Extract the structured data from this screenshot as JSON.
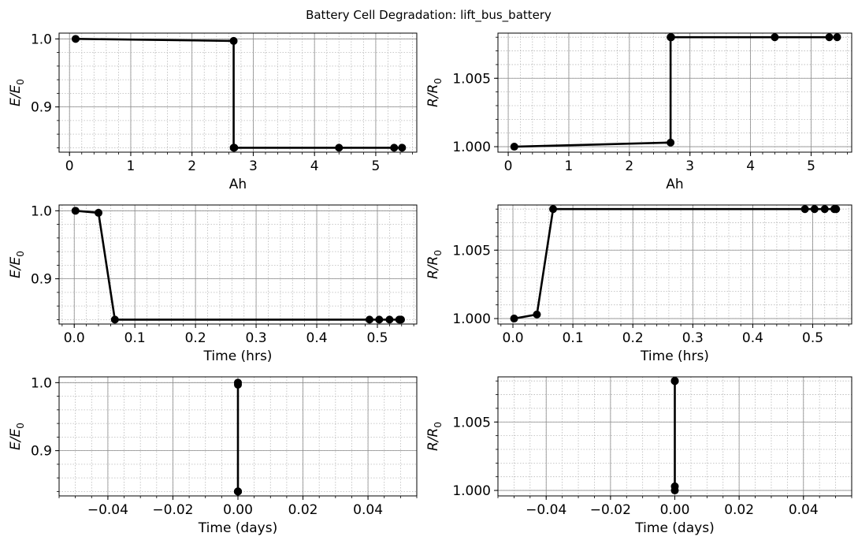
{
  "figure": {
    "suptitle": "Battery Cell Degradation: lift_bus_battery"
  },
  "style": {
    "line_color": "#000000",
    "marker_color": "#000000",
    "major_grid_color": "#8c8c8c",
    "minor_grid_color": "#b8b8b8",
    "background": "#ffffff"
  },
  "chart_data": [
    {
      "type": "line",
      "panel": "row1-left",
      "xlabel": "Ah",
      "ylabel": {
        "base": "E/E",
        "sub": "0"
      },
      "xlim": [
        -0.17,
        5.67
      ],
      "ylim": [
        0.8335,
        1.0085
      ],
      "x_ticks": [
        0,
        1,
        2,
        3,
        4,
        5
      ],
      "x_tick_labels": [
        "0",
        "1",
        "2",
        "3",
        "4",
        "5"
      ],
      "y_ticks": [
        0.9,
        1.0
      ],
      "y_tick_labels": [
        "0.9",
        "1.0"
      ],
      "x_minor_step": 0.2,
      "y_minor_step": 0.02,
      "grid": true,
      "series": [
        {
          "x": [
            0.1,
            2.68,
            2.68,
            2.69,
            4.4,
            5.3,
            5.43
          ],
          "y": [
            1.0,
            0.997,
            0.84,
            0.84,
            0.84,
            0.84,
            0.84
          ]
        }
      ]
    },
    {
      "type": "line",
      "panel": "row1-right",
      "xlabel": "Ah",
      "ylabel": {
        "base": "R/R",
        "sub": "0"
      },
      "xlim": [
        -0.17,
        5.67
      ],
      "ylim": [
        0.9996,
        1.0083
      ],
      "x_ticks": [
        0,
        1,
        2,
        3,
        4,
        5
      ],
      "x_tick_labels": [
        "0",
        "1",
        "2",
        "3",
        "4",
        "5"
      ],
      "y_ticks": [
        1.0,
        1.005
      ],
      "y_tick_labels": [
        "1.000",
        "1.005"
      ],
      "x_minor_step": 0.2,
      "y_minor_step": 0.001,
      "grid": true,
      "series": [
        {
          "x": [
            0.1,
            2.68,
            2.68,
            2.69,
            4.4,
            5.3,
            5.43
          ],
          "y": [
            1.0,
            1.0003,
            1.008,
            1.008,
            1.008,
            1.008,
            1.008
          ]
        }
      ]
    },
    {
      "type": "line",
      "panel": "row2-left",
      "xlabel": "Time (hrs)",
      "ylabel": {
        "base": "E/E",
        "sub": "0"
      },
      "xlim": [
        -0.025,
        0.565
      ],
      "ylim": [
        0.8335,
        1.0085
      ],
      "x_ticks": [
        0.0,
        0.1,
        0.2,
        0.3,
        0.4,
        0.5
      ],
      "x_tick_labels": [
        "0.0",
        "0.1",
        "0.2",
        "0.3",
        "0.4",
        "0.5"
      ],
      "y_ticks": [
        0.9,
        1.0
      ],
      "y_tick_labels": [
        "0.9",
        "1.0"
      ],
      "x_minor_step": 0.02,
      "y_minor_step": 0.02,
      "grid": true,
      "series": [
        {
          "x": [
            0.002,
            0.04,
            0.067,
            0.487,
            0.503,
            0.52,
            0.536,
            0.539
          ],
          "y": [
            1.0,
            0.997,
            0.84,
            0.84,
            0.84,
            0.84,
            0.84,
            0.84
          ]
        }
      ]
    },
    {
      "type": "line",
      "panel": "row2-right",
      "xlabel": "Time (hrs)",
      "ylabel": {
        "base": "R/R",
        "sub": "0"
      },
      "xlim": [
        -0.025,
        0.565
      ],
      "ylim": [
        0.9996,
        1.0083
      ],
      "x_ticks": [
        0.0,
        0.1,
        0.2,
        0.3,
        0.4,
        0.5
      ],
      "x_tick_labels": [
        "0.0",
        "0.1",
        "0.2",
        "0.3",
        "0.4",
        "0.5"
      ],
      "y_ticks": [
        1.0,
        1.005
      ],
      "y_tick_labels": [
        "1.000",
        "1.005"
      ],
      "x_minor_step": 0.02,
      "y_minor_step": 0.001,
      "grid": true,
      "series": [
        {
          "x": [
            0.002,
            0.04,
            0.067,
            0.487,
            0.503,
            0.52,
            0.536,
            0.539
          ],
          "y": [
            1.0,
            1.0003,
            1.008,
            1.008,
            1.008,
            1.008,
            1.008,
            1.008
          ]
        }
      ]
    },
    {
      "type": "line",
      "panel": "row3-left",
      "xlabel": "Time (days)",
      "ylabel": {
        "base": "E/E",
        "sub": "0"
      },
      "xlim": [
        -0.055,
        0.055
      ],
      "ylim": [
        0.8335,
        1.0085
      ],
      "x_ticks": [
        -0.04,
        -0.02,
        0.0,
        0.02,
        0.04
      ],
      "x_tick_labels": [
        "−0.04",
        "−0.02",
        "0.00",
        "0.02",
        "0.04"
      ],
      "y_ticks": [
        0.9,
        1.0
      ],
      "y_tick_labels": [
        "0.9",
        "1.0"
      ],
      "x_minor_step": 0.005,
      "y_minor_step": 0.02,
      "grid": true,
      "series": [
        {
          "x": [
            0.0,
            0.0,
            0.0,
            0.0,
            0.0,
            0.0,
            0.0
          ],
          "y": [
            1.0,
            0.997,
            0.84,
            0.84,
            0.84,
            0.84,
            0.84
          ]
        }
      ]
    },
    {
      "type": "line",
      "panel": "row3-right",
      "xlabel": "Time (days)",
      "ylabel": {
        "base": "R/R",
        "sub": "0"
      },
      "xlim": [
        -0.055,
        0.055
      ],
      "ylim": [
        0.9996,
        1.0083
      ],
      "x_ticks": [
        -0.04,
        -0.02,
        0.0,
        0.02,
        0.04
      ],
      "x_tick_labels": [
        "−0.04",
        "−0.02",
        "0.00",
        "0.02",
        "0.04"
      ],
      "y_ticks": [
        1.0,
        1.005
      ],
      "y_tick_labels": [
        "1.000",
        "1.005"
      ],
      "x_minor_step": 0.005,
      "y_minor_step": 0.001,
      "grid": true,
      "series": [
        {
          "x": [
            0.0,
            0.0,
            0.0,
            0.0,
            0.0,
            0.0,
            0.0
          ],
          "y": [
            1.0,
            1.0003,
            1.008,
            1.008,
            1.008,
            1.008,
            1.008
          ]
        }
      ]
    }
  ]
}
